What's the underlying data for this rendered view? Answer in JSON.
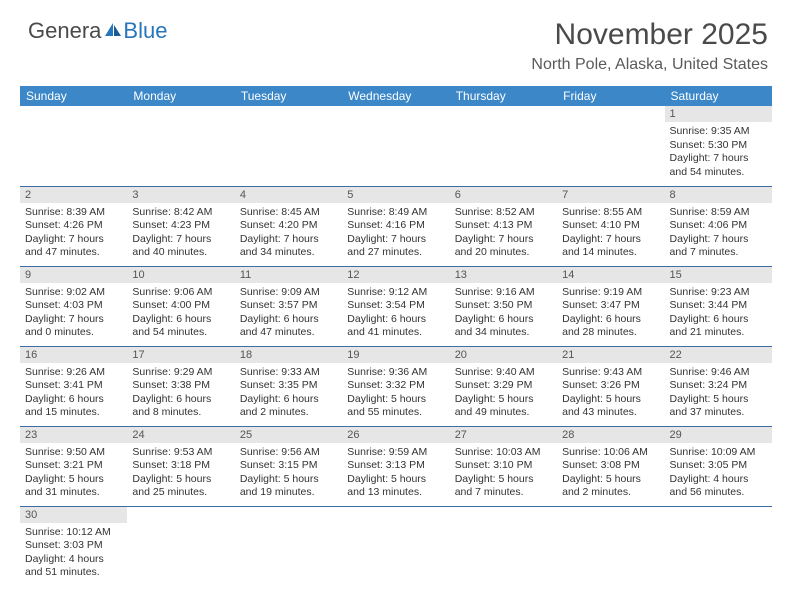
{
  "logo": {
    "main": "Genera",
    "blue": "Blue"
  },
  "title": "November 2025",
  "location": "North Pole, Alaska, United States",
  "dayHeaders": [
    "Sunday",
    "Monday",
    "Tuesday",
    "Wednesday",
    "Thursday",
    "Friday",
    "Saturday"
  ],
  "colors": {
    "headerBg": "#3b87c8",
    "headerText": "#ffffff",
    "dayBg": "#e6e6e6",
    "rowBorder": "#3b6ea5",
    "logoBlue": "#2676bb",
    "text": "#333333"
  },
  "weeks": [
    [
      null,
      null,
      null,
      null,
      null,
      null,
      {
        "d": "1",
        "sr": "9:35 AM",
        "ss": "5:30 PM",
        "dl": "7 hours and 54 minutes."
      }
    ],
    [
      {
        "d": "2",
        "sr": "8:39 AM",
        "ss": "4:26 PM",
        "dl": "7 hours and 47 minutes."
      },
      {
        "d": "3",
        "sr": "8:42 AM",
        "ss": "4:23 PM",
        "dl": "7 hours and 40 minutes."
      },
      {
        "d": "4",
        "sr": "8:45 AM",
        "ss": "4:20 PM",
        "dl": "7 hours and 34 minutes."
      },
      {
        "d": "5",
        "sr": "8:49 AM",
        "ss": "4:16 PM",
        "dl": "7 hours and 27 minutes."
      },
      {
        "d": "6",
        "sr": "8:52 AM",
        "ss": "4:13 PM",
        "dl": "7 hours and 20 minutes."
      },
      {
        "d": "7",
        "sr": "8:55 AM",
        "ss": "4:10 PM",
        "dl": "7 hours and 14 minutes."
      },
      {
        "d": "8",
        "sr": "8:59 AM",
        "ss": "4:06 PM",
        "dl": "7 hours and 7 minutes."
      }
    ],
    [
      {
        "d": "9",
        "sr": "9:02 AM",
        "ss": "4:03 PM",
        "dl": "7 hours and 0 minutes."
      },
      {
        "d": "10",
        "sr": "9:06 AM",
        "ss": "4:00 PM",
        "dl": "6 hours and 54 minutes."
      },
      {
        "d": "11",
        "sr": "9:09 AM",
        "ss": "3:57 PM",
        "dl": "6 hours and 47 minutes."
      },
      {
        "d": "12",
        "sr": "9:12 AM",
        "ss": "3:54 PM",
        "dl": "6 hours and 41 minutes."
      },
      {
        "d": "13",
        "sr": "9:16 AM",
        "ss": "3:50 PM",
        "dl": "6 hours and 34 minutes."
      },
      {
        "d": "14",
        "sr": "9:19 AM",
        "ss": "3:47 PM",
        "dl": "6 hours and 28 minutes."
      },
      {
        "d": "15",
        "sr": "9:23 AM",
        "ss": "3:44 PM",
        "dl": "6 hours and 21 minutes."
      }
    ],
    [
      {
        "d": "16",
        "sr": "9:26 AM",
        "ss": "3:41 PM",
        "dl": "6 hours and 15 minutes."
      },
      {
        "d": "17",
        "sr": "9:29 AM",
        "ss": "3:38 PM",
        "dl": "6 hours and 8 minutes."
      },
      {
        "d": "18",
        "sr": "9:33 AM",
        "ss": "3:35 PM",
        "dl": "6 hours and 2 minutes."
      },
      {
        "d": "19",
        "sr": "9:36 AM",
        "ss": "3:32 PM",
        "dl": "5 hours and 55 minutes."
      },
      {
        "d": "20",
        "sr": "9:40 AM",
        "ss": "3:29 PM",
        "dl": "5 hours and 49 minutes."
      },
      {
        "d": "21",
        "sr": "9:43 AM",
        "ss": "3:26 PM",
        "dl": "5 hours and 43 minutes."
      },
      {
        "d": "22",
        "sr": "9:46 AM",
        "ss": "3:24 PM",
        "dl": "5 hours and 37 minutes."
      }
    ],
    [
      {
        "d": "23",
        "sr": "9:50 AM",
        "ss": "3:21 PM",
        "dl": "5 hours and 31 minutes."
      },
      {
        "d": "24",
        "sr": "9:53 AM",
        "ss": "3:18 PM",
        "dl": "5 hours and 25 minutes."
      },
      {
        "d": "25",
        "sr": "9:56 AM",
        "ss": "3:15 PM",
        "dl": "5 hours and 19 minutes."
      },
      {
        "d": "26",
        "sr": "9:59 AM",
        "ss": "3:13 PM",
        "dl": "5 hours and 13 minutes."
      },
      {
        "d": "27",
        "sr": "10:03 AM",
        "ss": "3:10 PM",
        "dl": "5 hours and 7 minutes."
      },
      {
        "d": "28",
        "sr": "10:06 AM",
        "ss": "3:08 PM",
        "dl": "5 hours and 2 minutes."
      },
      {
        "d": "29",
        "sr": "10:09 AM",
        "ss": "3:05 PM",
        "dl": "4 hours and 56 minutes."
      }
    ],
    [
      {
        "d": "30",
        "sr": "10:12 AM",
        "ss": "3:03 PM",
        "dl": "4 hours and 51 minutes."
      },
      null,
      null,
      null,
      null,
      null,
      null
    ]
  ],
  "labels": {
    "sunrise": "Sunrise: ",
    "sunset": "Sunset: ",
    "daylight": "Daylight: "
  }
}
